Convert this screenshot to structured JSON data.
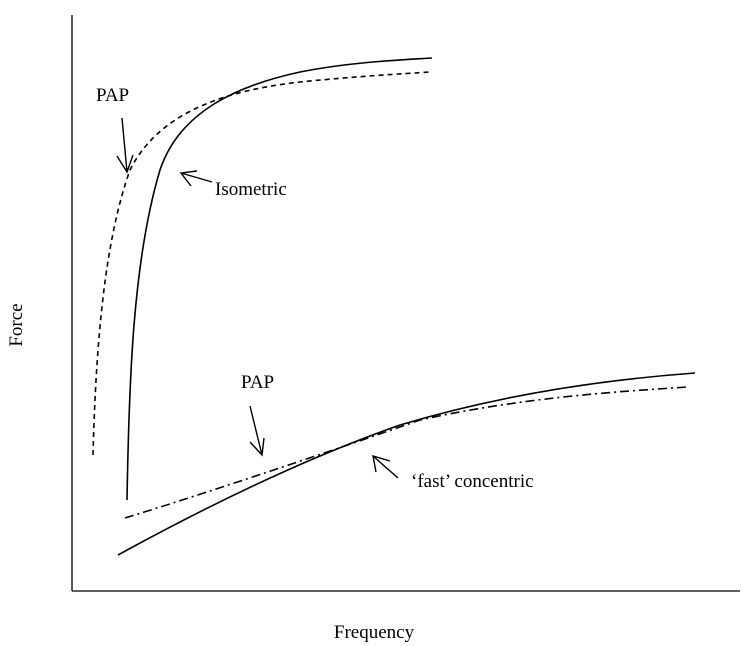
{
  "axes": {
    "x_label": "Frequency",
    "y_label": "Force"
  },
  "annotations": [
    {
      "label": "PAP"
    },
    {
      "label": "Isometric"
    },
    {
      "label": "PAP"
    },
    {
      "label": "‘fast’ concentric"
    }
  ]
}
